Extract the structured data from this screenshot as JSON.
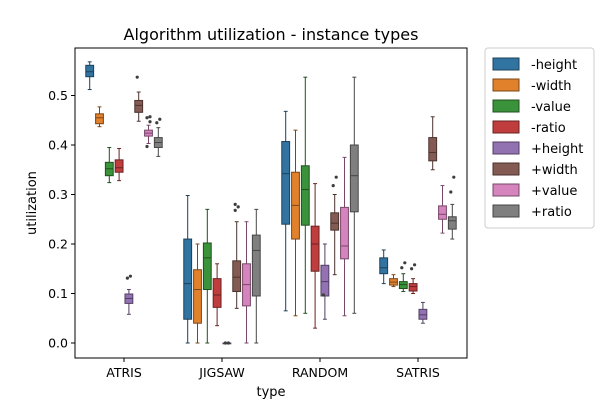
{
  "chart_data": {
    "type": "box",
    "title": "Algorithm utilization - instance types",
    "xlabel": "type",
    "ylabel": "utilization",
    "ylim": [
      -0.02,
      0.58
    ],
    "yticks": [
      "0.0",
      "0.1",
      "0.2",
      "0.3",
      "0.4",
      "0.5"
    ],
    "categories": [
      "ATRIS",
      "JIGSAW",
      "RANDOM",
      "SATRIS"
    ],
    "legend_position": "outside-top-right",
    "series": [
      {
        "name": "-height",
        "color": "#3274a1",
        "boxes": [
          {
            "whislo": 0.512,
            "q1": 0.538,
            "med": 0.548,
            "q3": 0.561,
            "whishi": 0.568,
            "fliers": []
          },
          {
            "whislo": 0.0,
            "q1": 0.048,
            "med": 0.12,
            "q3": 0.21,
            "whishi": 0.298,
            "fliers": []
          },
          {
            "whislo": 0.065,
            "q1": 0.24,
            "med": 0.342,
            "q3": 0.407,
            "whishi": 0.468,
            "fliers": []
          },
          {
            "whislo": 0.12,
            "q1": 0.14,
            "med": 0.152,
            "q3": 0.172,
            "whishi": 0.188,
            "fliers": []
          }
        ]
      },
      {
        "name": "-width",
        "color": "#e1812c",
        "boxes": [
          {
            "whislo": 0.437,
            "q1": 0.443,
            "med": 0.455,
            "q3": 0.463,
            "whishi": 0.477,
            "fliers": []
          },
          {
            "whislo": 0.0,
            "q1": 0.04,
            "med": 0.108,
            "q3": 0.148,
            "whishi": 0.2,
            "fliers": []
          },
          {
            "whislo": 0.055,
            "q1": 0.21,
            "med": 0.278,
            "q3": 0.345,
            "whishi": 0.43,
            "fliers": []
          },
          {
            "whislo": 0.114,
            "q1": 0.117,
            "med": 0.123,
            "q3": 0.13,
            "whishi": 0.138,
            "fliers": []
          }
        ]
      },
      {
        "name": "-value",
        "color": "#3a923a",
        "boxes": [
          {
            "whislo": 0.324,
            "q1": 0.338,
            "med": 0.352,
            "q3": 0.365,
            "whishi": 0.395,
            "fliers": []
          },
          {
            "whislo": 0.0,
            "q1": 0.108,
            "med": 0.172,
            "q3": 0.202,
            "whishi": 0.27,
            "fliers": []
          },
          {
            "whislo": 0.06,
            "q1": 0.238,
            "med": 0.31,
            "q3": 0.358,
            "whishi": 0.537,
            "fliers": []
          },
          {
            "whislo": 0.104,
            "q1": 0.11,
            "med": 0.118,
            "q3": 0.124,
            "whishi": 0.14,
            "fliers": [
              0.152,
              0.162
            ]
          }
        ]
      },
      {
        "name": "-ratio",
        "color": "#c03d3e",
        "boxes": [
          {
            "whislo": 0.328,
            "q1": 0.345,
            "med": 0.354,
            "q3": 0.37,
            "whishi": 0.393,
            "fliers": []
          },
          {
            "whislo": 0.035,
            "q1": 0.072,
            "med": 0.097,
            "q3": 0.13,
            "whishi": 0.16,
            "fliers": []
          },
          {
            "whislo": 0.03,
            "q1": 0.145,
            "med": 0.2,
            "q3": 0.236,
            "whishi": 0.322,
            "fliers": []
          },
          {
            "whislo": 0.1,
            "q1": 0.105,
            "med": 0.114,
            "q3": 0.12,
            "whishi": 0.13,
            "fliers": [
              0.15,
              0.158
            ]
          }
        ]
      },
      {
        "name": "+height",
        "color": "#9372b2",
        "boxes": [
          {
            "whislo": 0.058,
            "q1": 0.08,
            "med": 0.09,
            "q3": 0.099,
            "whishi": 0.108,
            "fliers": [
              0.131,
              0.135
            ]
          },
          {
            "whislo": 0.0,
            "q1": 0.0,
            "med": 0.0,
            "q3": 0.0,
            "whishi": 0.0,
            "fliers": [
              0.0,
              0.0
            ]
          },
          {
            "whislo": 0.048,
            "q1": 0.095,
            "med": 0.124,
            "q3": 0.157,
            "whishi": 0.2,
            "fliers": [
              0.097
            ]
          },
          {
            "whislo": 0.04,
            "q1": 0.048,
            "med": 0.057,
            "q3": 0.068,
            "whishi": 0.082,
            "fliers": []
          }
        ]
      },
      {
        "name": "+width",
        "color": "#845b53",
        "boxes": [
          {
            "whislo": 0.448,
            "q1": 0.466,
            "med": 0.48,
            "q3": 0.49,
            "whishi": 0.507,
            "fliers": [
              0.537
            ]
          },
          {
            "whislo": 0.07,
            "q1": 0.104,
            "med": 0.133,
            "q3": 0.166,
            "whishi": 0.245,
            "fliers": [
              0.268,
              0.275,
              0.28
            ]
          },
          {
            "whislo": 0.138,
            "q1": 0.228,
            "med": 0.242,
            "q3": 0.263,
            "whishi": 0.3,
            "fliers": [
              0.318,
              0.335
            ]
          },
          {
            "whislo": 0.35,
            "q1": 0.368,
            "med": 0.385,
            "q3": 0.415,
            "whishi": 0.457,
            "fliers": []
          }
        ]
      },
      {
        "name": "+value",
        "color": "#d684bd",
        "boxes": [
          {
            "whislo": 0.403,
            "q1": 0.418,
            "med": 0.424,
            "q3": 0.43,
            "whishi": 0.44,
            "fliers": [
              0.397,
              0.447,
              0.455,
              0.457
            ]
          },
          {
            "whislo": 0.0,
            "q1": 0.075,
            "med": 0.118,
            "q3": 0.16,
            "whishi": 0.245,
            "fliers": []
          },
          {
            "whislo": 0.055,
            "q1": 0.17,
            "med": 0.196,
            "q3": 0.274,
            "whishi": 0.375,
            "fliers": []
          },
          {
            "whislo": 0.222,
            "q1": 0.25,
            "med": 0.26,
            "q3": 0.277,
            "whishi": 0.318,
            "fliers": []
          }
        ]
      },
      {
        "name": "+ratio",
        "color": "#7f7f7f",
        "boxes": [
          {
            "whislo": 0.377,
            "q1": 0.395,
            "med": 0.405,
            "q3": 0.415,
            "whishi": 0.435,
            "fliers": [
              0.445,
              0.452
            ]
          },
          {
            "whislo": 0.0,
            "q1": 0.095,
            "med": 0.187,
            "q3": 0.218,
            "whishi": 0.27,
            "fliers": []
          },
          {
            "whislo": 0.06,
            "q1": 0.265,
            "med": 0.338,
            "q3": 0.4,
            "whishi": 0.537,
            "fliers": []
          },
          {
            "whislo": 0.21,
            "q1": 0.23,
            "med": 0.247,
            "q3": 0.255,
            "whishi": 0.28,
            "fliers": [
              0.305,
              0.335
            ]
          }
        ]
      }
    ]
  }
}
